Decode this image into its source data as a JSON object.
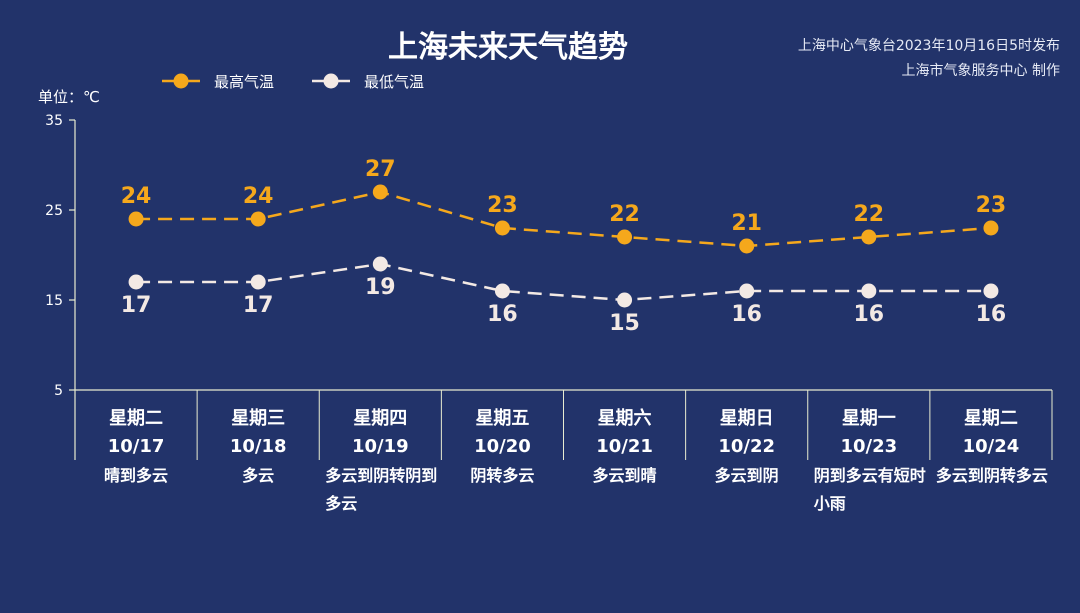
{
  "title": "上海未来天气趋势",
  "issuer": {
    "line1": "上海中心气象台2023年10月16日5时发布",
    "line2": "上海市气象服务中心 制作"
  },
  "colors": {
    "background": "#22336a",
    "high": "#f5a81c",
    "low": "#f3e9e4",
    "axis": "#e8ecd0"
  },
  "chart_data": {
    "type": "line",
    "unit_label": "单位：℃",
    "ylim": [
      5,
      35
    ],
    "yticks": [
      5,
      15,
      25,
      35
    ],
    "x": [
      {
        "weekday": "星期二",
        "date": "10/17",
        "weather": "晴到多云"
      },
      {
        "weekday": "星期三",
        "date": "10/18",
        "weather": "多云"
      },
      {
        "weekday": "星期四",
        "date": "10/19",
        "weather": "多云到阴转阴到多云"
      },
      {
        "weekday": "星期五",
        "date": "10/20",
        "weather": "阴转多云"
      },
      {
        "weekday": "星期六",
        "date": "10/21",
        "weather": "多云到晴"
      },
      {
        "weekday": "星期日",
        "date": "10/22",
        "weather": "多云到阴"
      },
      {
        "weekday": "星期一",
        "date": "10/23",
        "weather": "阴到多云有短时小雨"
      },
      {
        "weekday": "星期二",
        "date": "10/24",
        "weather": "多云到阴转多云"
      }
    ],
    "series": [
      {
        "name": "最高气温",
        "values": [
          24,
          24,
          27,
          23,
          22,
          21,
          22,
          23
        ]
      },
      {
        "name": "最低气温",
        "values": [
          17,
          17,
          19,
          16,
          15,
          16,
          16,
          16
        ]
      }
    ],
    "legend_position": "top-left",
    "grid": false
  }
}
